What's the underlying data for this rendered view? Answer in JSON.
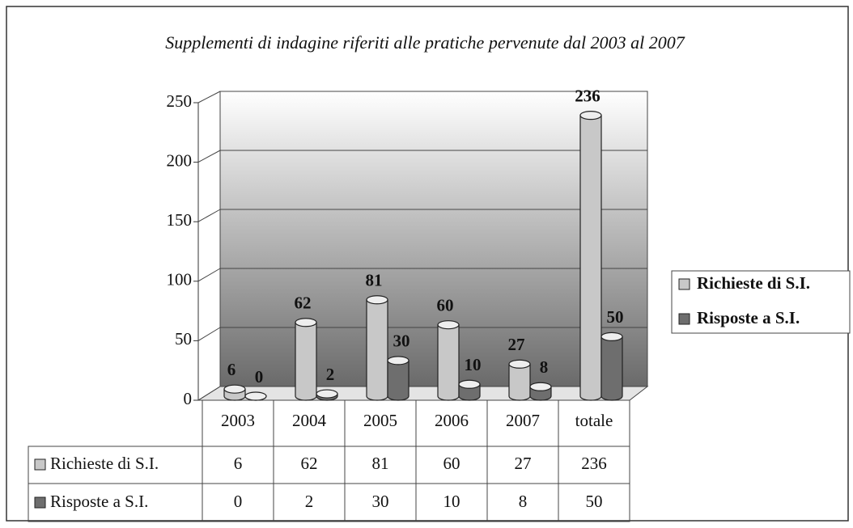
{
  "chart_data": {
    "type": "bar3d",
    "title": "Supplementi di indagine riferiti alle pratiche pervenute dal 2003 al 2007",
    "categories": [
      "2003",
      "2004",
      "2005",
      "2006",
      "2007",
      "totale"
    ],
    "series": [
      {
        "name": "Richieste di S.I.",
        "color": "#c8c8c8",
        "values": [
          6,
          62,
          81,
          60,
          27,
          236
        ]
      },
      {
        "name": "Risposte a S.I.",
        "color": "#6e6e6e",
        "values": [
          0,
          2,
          30,
          10,
          8,
          50
        ]
      }
    ],
    "ylim": [
      0,
      250
    ],
    "yticks": [
      0,
      50,
      100,
      150,
      200,
      250
    ],
    "grid": true,
    "legend": "right"
  }
}
